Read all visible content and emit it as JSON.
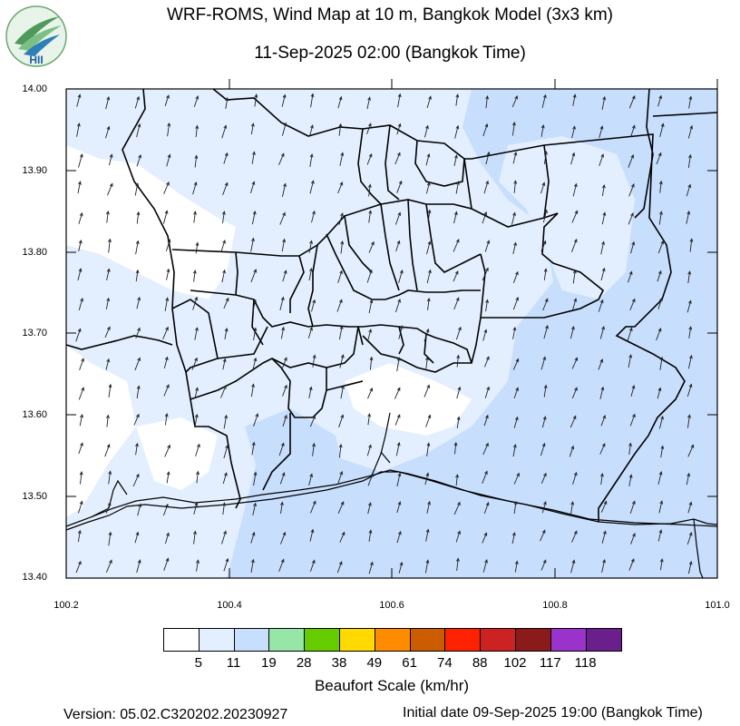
{
  "header": {
    "title_line1": "WRF-ROMS, Wind Map at 10 m, Bangkok Model (3x3 km)",
    "title_line2": "11-Sep-2025 02:00 (Bangkok Time)"
  },
  "logo": {
    "text": "HII"
  },
  "axes": {
    "lat_ticks": [
      "14.00",
      "13.90",
      "13.80",
      "13.70",
      "13.60",
      "13.50",
      "13.40"
    ],
    "lon_ticks": [
      "100.2",
      "100.4",
      "100.6",
      "100.8",
      "101.0"
    ],
    "lat_range": [
      13.4,
      14.0
    ],
    "lon_range": [
      100.2,
      101.0
    ]
  },
  "legend": {
    "title": "Beaufort Scale (km/hr)",
    "labels": [
      "5",
      "11",
      "19",
      "28",
      "38",
      "49",
      "61",
      "74",
      "88",
      "102",
      "117",
      "118"
    ],
    "colors": [
      "#ffffff",
      "#e3efff",
      "#c8defd",
      "#96e6a8",
      "#66cc00",
      "#ffd900",
      "#ff8c00",
      "#cc5c00",
      "#ff2200",
      "#cc2222",
      "#8b1a1a",
      "#9933cc",
      "#6a1f8c"
    ]
  },
  "footer": {
    "version": "Version: 05.02.C320202.20230927",
    "initial_date": "Initial date 09-Sep-2025 19:00 (Bangkok Time)"
  }
}
